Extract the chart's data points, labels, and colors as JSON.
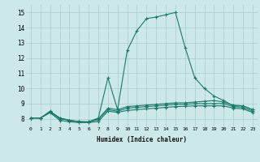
{
  "xlabel": "Humidex (Indice chaleur)",
  "ylabel": "",
  "background_color": "#cce8e8",
  "grid_color": "#aacccc",
  "line_color": "#1a7a6a",
  "xlim": [
    -0.5,
    23.5
  ],
  "ylim": [
    7.5,
    15.5
  ],
  "xtick_labels": [
    "0",
    "1",
    "2",
    "3",
    "4",
    "5",
    "6",
    "7",
    "8",
    "9",
    "10",
    "11",
    "12",
    "13",
    "14",
    "15",
    "16",
    "17",
    "18",
    "19",
    "20",
    "21",
    "22",
    "23"
  ],
  "xtick_vals": [
    0,
    1,
    2,
    3,
    4,
    5,
    6,
    7,
    8,
    9,
    10,
    11,
    12,
    13,
    14,
    15,
    16,
    17,
    18,
    19,
    20,
    21,
    22,
    23
  ],
  "ytick_vals": [
    8,
    9,
    10,
    11,
    12,
    13,
    14,
    15
  ],
  "line_max": {
    "x": [
      0,
      1,
      2,
      3,
      4,
      5,
      6,
      7,
      8,
      9,
      10,
      11,
      12,
      13,
      14,
      15,
      16,
      17,
      18,
      19,
      20,
      21,
      22,
      23
    ],
    "y": [
      8.05,
      8.05,
      8.5,
      8.05,
      7.9,
      7.8,
      7.8,
      8.05,
      10.7,
      8.6,
      12.5,
      13.8,
      14.6,
      14.7,
      14.85,
      15.0,
      12.7,
      10.7,
      10.0,
      9.5,
      9.2,
      8.85,
      8.85,
      8.6
    ]
  },
  "line_q3": {
    "x": [
      0,
      1,
      2,
      3,
      4,
      5,
      6,
      7,
      8,
      9,
      10,
      11,
      12,
      13,
      14,
      15,
      16,
      17,
      18,
      19,
      20,
      21,
      22,
      23
    ],
    "y": [
      8.05,
      8.05,
      8.45,
      8.05,
      7.9,
      7.8,
      7.8,
      8.0,
      8.7,
      8.6,
      8.8,
      8.85,
      8.9,
      8.95,
      9.0,
      9.05,
      9.05,
      9.1,
      9.15,
      9.2,
      9.1,
      8.9,
      8.85,
      8.6
    ]
  },
  "line_median": {
    "x": [
      0,
      1,
      2,
      3,
      4,
      5,
      6,
      7,
      8,
      9,
      10,
      11,
      12,
      13,
      14,
      15,
      16,
      17,
      18,
      19,
      20,
      21,
      22,
      23
    ],
    "y": [
      8.05,
      8.05,
      8.45,
      8.0,
      7.9,
      7.82,
      7.78,
      7.95,
      8.6,
      8.5,
      8.7,
      8.75,
      8.8,
      8.85,
      8.9,
      8.95,
      8.95,
      9.0,
      9.0,
      9.0,
      9.0,
      8.8,
      8.75,
      8.5
    ]
  },
  "line_min": {
    "x": [
      0,
      1,
      2,
      3,
      4,
      5,
      6,
      7,
      8,
      9,
      10,
      11,
      12,
      13,
      14,
      15,
      16,
      17,
      18,
      19,
      20,
      21,
      22,
      23
    ],
    "y": [
      8.05,
      8.05,
      8.4,
      7.9,
      7.8,
      7.75,
      7.75,
      7.82,
      8.5,
      8.42,
      8.55,
      8.6,
      8.65,
      8.7,
      8.75,
      8.8,
      8.82,
      8.85,
      8.85,
      8.85,
      8.85,
      8.7,
      8.65,
      8.42
    ]
  }
}
